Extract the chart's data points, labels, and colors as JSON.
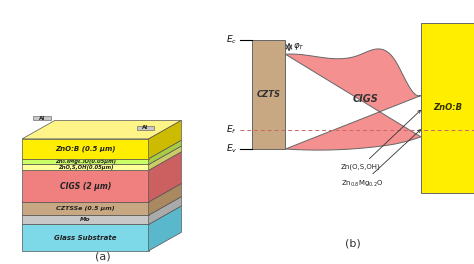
{
  "bg_color": "#ffffff",
  "panel_a_label": "(a)",
  "panel_b_label": "(b)",
  "layers": [
    {
      "label": "Glass Substrate",
      "color_front": "#7dd8e8",
      "color_top": "#a8e8f4",
      "color_right": "#5ab8cc"
    },
    {
      "label": "Mo",
      "color_front": "#c8c8c8",
      "color_top": "#dedede",
      "color_right": "#aaaaaa"
    },
    {
      "label": "CZTSSe (0.5 μm)",
      "color_front": "#c8a882",
      "color_top": "#ddc0a0",
      "color_right": "#aa8860"
    },
    {
      "label": "CIGS (2 μm)",
      "color_front": "#f08080",
      "color_top": "#f8a0a0",
      "color_right": "#cc6060"
    },
    {
      "label": "ZnO,S,OH(0.05μm)",
      "color_front": "#ffff99",
      "color_top": "#ffffbb",
      "color_right": "#cccc66"
    },
    {
      "label": "Zn₀.₈Mg₀.₂O(0.05μm)",
      "color_front": "#ccff66",
      "color_top": "#ddff88",
      "color_right": "#aacc44"
    },
    {
      "label": "ZnO:B (0.5 μm)",
      "color_front": "#ffee00",
      "color_top": "#fff488",
      "color_right": "#ccbb00"
    },
    {
      "label": "Al",
      "color_front": "#c8c8c8",
      "color_top": "#dedede",
      "color_right": "#aaaaaa"
    }
  ],
  "czts_color": "#c8a882",
  "cigs_color": "#f59090",
  "znob_color": "#ffee00",
  "ef_color": "#cc6666"
}
